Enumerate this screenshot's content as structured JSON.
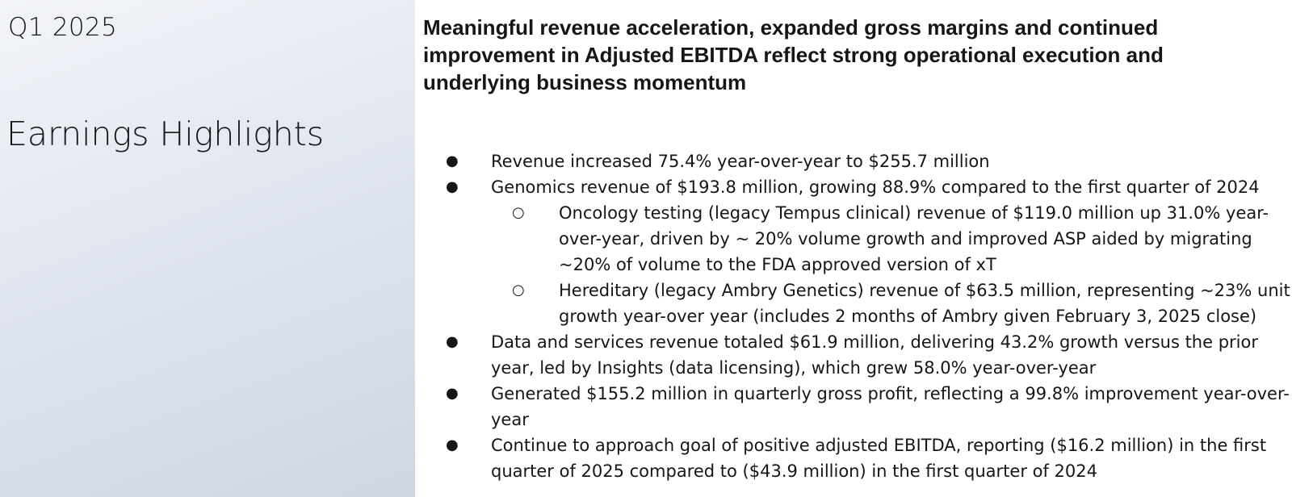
{
  "left": {
    "quarter": "Q1 2025",
    "title": "Earnings Highlights"
  },
  "right": {
    "headline": "Meaningful revenue acceleration, expanded gross margins and continued improvement in Adjusted EBITDA reflect strong operational execution and underlying business momentum",
    "bullets": [
      {
        "marker": "●",
        "text": "Revenue increased 75.4% year-over-year to $255.7 million"
      },
      {
        "marker": "●",
        "text": "Genomics revenue of $193.8 million, growing 88.9% compared to the first quarter of 2024"
      },
      {
        "marker": "○",
        "text": "Oncology testing (legacy Tempus clinical) revenue of $119.0 million up 31.0% year-over-year, driven by ~ 20% volume growth and improved ASP aided by migrating ~20% of volume to the FDA approved version of xT"
      },
      {
        "marker": "○",
        "text": "Hereditary (legacy Ambry Genetics) revenue of $63.5 million, representing ~23% unit growth year-over year (includes 2 months of Ambry given February 3, 2025 close)"
      },
      {
        "marker": "●",
        "text": "Data and services revenue totaled $61.9 million, delivering 43.2% growth versus the prior year, led by Insights (data licensing), which grew 58.0% year-over-year"
      },
      {
        "marker": "●",
        "text": "Generated $155.2 million in quarterly gross profit, reflecting a 99.8% improvement year-over-year"
      },
      {
        "marker": "●",
        "text": "Continue to approach goal of positive adjusted EBITDA, reporting ($16.2 million) in the first quarter of 2025 compared to ($43.9 million) in the first quarter of 2024"
      }
    ]
  }
}
